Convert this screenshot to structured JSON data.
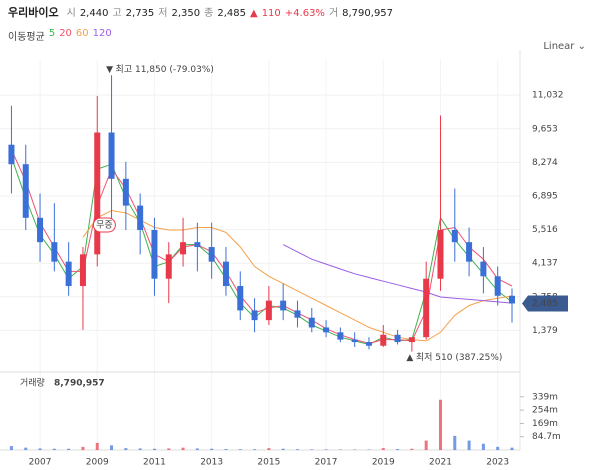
{
  "header": {
    "name": "우리바이오",
    "quotes": [
      {
        "label": "시",
        "value": "2,440"
      },
      {
        "label": "고",
        "value": "2,735"
      },
      {
        "label": "저",
        "value": "2,350"
      },
      {
        "label": "종",
        "value": "2,485"
      }
    ],
    "change_arrow": "▲",
    "change": "110",
    "change_pct": "+4.63%",
    "volume_label": "거",
    "volume_value": "8,790,957"
  },
  "chart_data": {
    "type": "candlestick",
    "scale_label": "Linear",
    "ma_title": "이동평균",
    "xlim": [
      2005.6,
      2023.78
    ],
    "xticks": [
      2007,
      2009,
      2011,
      2013,
      2015,
      2017,
      2019,
      2021,
      2023
    ],
    "ylim": [
      0,
      12476
    ],
    "yticks": [
      {
        "value": 1379,
        "label": "1,379"
      },
      {
        "value": 2758,
        "label": "2,758"
      },
      {
        "value": 4137,
        "label": "4,137"
      },
      {
        "value": 5516,
        "label": "5,516"
      },
      {
        "value": 6895,
        "label": "6,895"
      },
      {
        "value": 8274,
        "label": "8,274"
      },
      {
        "value": 9653,
        "label": "9,653"
      },
      {
        "value": 11032,
        "label": "11,032"
      }
    ],
    "grid": true,
    "up_color": "#e8394a",
    "down_color": "#3a6fd8",
    "x": [
      2006.0,
      2006.5,
      2007.0,
      2007.5,
      2008.0,
      2008.5,
      2009.0,
      2009.5,
      2010.0,
      2010.5,
      2011.0,
      2011.5,
      2012.0,
      2012.5,
      2013.0,
      2013.5,
      2014.0,
      2014.5,
      2015.0,
      2015.5,
      2016.0,
      2016.5,
      2017.0,
      2017.5,
      2018.0,
      2018.5,
      2019.0,
      2019.5,
      2020.0,
      2020.5,
      2021.0,
      2021.5,
      2022.0,
      2022.5,
      2023.0,
      2023.5
    ],
    "open": [
      9000,
      8200,
      6000,
      5000,
      4200,
      3200,
      4500,
      9500,
      7600,
      6500,
      5500,
      3500,
      4500,
      5000,
      4800,
      4200,
      3200,
      2200,
      1800,
      2600,
      2200,
      1900,
      1500,
      1300,
      1000,
      900,
      750,
      1200,
      900,
      1100,
      3500,
      5500,
      5000,
      4200,
      3600,
      2800
    ],
    "high": [
      10600,
      9000,
      7000,
      6600,
      5000,
      4800,
      11000,
      11850,
      8300,
      7000,
      6000,
      5000,
      6000,
      5800,
      5800,
      4800,
      3800,
      2700,
      3200,
      3300,
      2600,
      2300,
      1800,
      1500,
      1300,
      1100,
      1600,
      1400,
      1000,
      4200,
      10200,
      7200,
      5600,
      4800,
      4000,
      3100
    ],
    "low": [
      7000,
      5500,
      4200,
      3800,
      2800,
      1400,
      4000,
      5500,
      5500,
      4500,
      2800,
      2500,
      4000,
      3800,
      3500,
      2800,
      1800,
      1300,
      1600,
      1800,
      1500,
      1300,
      1100,
      900,
      700,
      600,
      700,
      800,
      510,
      1000,
      3000,
      4200,
      3600,
      2900,
      2400,
      1700
    ],
    "close": [
      8200,
      6000,
      5000,
      4200,
      3200,
      4500,
      9500,
      7600,
      6500,
      5500,
      3500,
      4500,
      5000,
      4800,
      4200,
      3200,
      2200,
      1800,
      2600,
      2200,
      1900,
      1500,
      1300,
      1000,
      900,
      750,
      1200,
      900,
      1100,
      3500,
      5500,
      5000,
      4200,
      3600,
      2800,
      2485
    ],
    "last_price": {
      "value": 2485,
      "label": "2,485"
    },
    "series": [
      {
        "name": "5",
        "color": "#3fb24a",
        "values": [
          8500,
          6800,
          5300,
          4500,
          3500,
          4000,
          8000,
          8200,
          6800,
          5800,
          4000,
          4200,
          4900,
          4900,
          4400,
          3500,
          2500,
          1900,
          2400,
          2300,
          2000,
          1600,
          1350,
          1100,
          950,
          800,
          1100,
          950,
          1000,
          3000,
          6000,
          5100,
          4400,
          3700,
          3000,
          2550
        ]
      },
      {
        "name": "20",
        "color": "#f0506e",
        "values": [
          8800,
          7500,
          5800,
          4800,
          3800,
          3800,
          6500,
          8000,
          7200,
          6000,
          4500,
          4200,
          4800,
          4900,
          4600,
          3800,
          2800,
          2100,
          2300,
          2400,
          2100,
          1800,
          1450,
          1200,
          1000,
          850,
          1000,
          1000,
          950,
          2200,
          5500,
          5600,
          4800,
          4300,
          3500,
          3200
        ]
      },
      {
        "name": "60",
        "color": "#f5a04b",
        "values": [
          null,
          null,
          null,
          null,
          null,
          5200,
          6000,
          6300,
          6200,
          5900,
          5600,
          5500,
          5500,
          5600,
          5600,
          5400,
          4800,
          4000,
          3600,
          3300,
          3000,
          2700,
          2400,
          2100,
          1800,
          1500,
          1300,
          1100,
          1000,
          950,
          1300,
          2000,
          2400,
          2600,
          2700,
          2790
        ]
      },
      {
        "name": "120",
        "color": "#9b5de5",
        "values": [
          null,
          null,
          null,
          null,
          null,
          null,
          null,
          null,
          null,
          null,
          null,
          null,
          null,
          null,
          null,
          null,
          null,
          null,
          null,
          4900,
          4600,
          4300,
          4100,
          3900,
          3700,
          3550,
          3400,
          3250,
          3100,
          2950,
          2750,
          2700,
          2650,
          2600,
          2550,
          2500
        ]
      }
    ],
    "annotations": [
      {
        "text": "최고 11,850 (-79.03%)",
        "x": 2009.5,
        "value": 11850,
        "direction": "down"
      },
      {
        "text": "최저 510 (387.25%)",
        "x": 2020.0,
        "value": 510,
        "direction": "up"
      }
    ],
    "events": [
      {
        "text": "무증",
        "x": 2009.25
      }
    ],
    "volume_title": "거래량",
    "volume_total": "8,790,957",
    "volume_ylim": [
      0,
      458500000
    ],
    "volume_yticks": [
      {
        "value": 84700000,
        "label": "84.7m"
      },
      {
        "value": 169000000,
        "label": "169m"
      },
      {
        "value": 254000000,
        "label": "254m"
      },
      {
        "value": 339000000,
        "label": "339m"
      }
    ],
    "volume": [
      25000000,
      15000000,
      10000000,
      8000000,
      8000000,
      20000000,
      45000000,
      30000000,
      12000000,
      10000000,
      8000000,
      10000000,
      15000000,
      10000000,
      8000000,
      6000000,
      5000000,
      5000000,
      12000000,
      8000000,
      5000000,
      4000000,
      4000000,
      3000000,
      3000000,
      3000000,
      12000000,
      6000000,
      8000000,
      60000000,
      320000000,
      90000000,
      60000000,
      40000000,
      20000000,
      15000000
    ]
  }
}
